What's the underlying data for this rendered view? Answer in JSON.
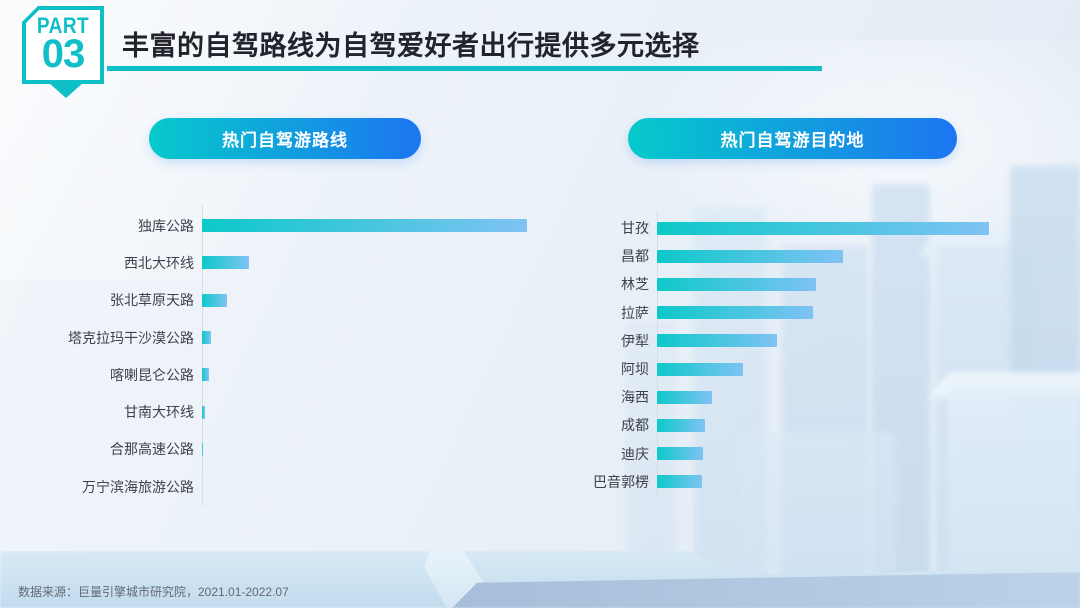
{
  "slide": {
    "badge": {
      "part": "PART",
      "number": "03"
    },
    "title": "丰富的自驾路线为自驾爱好者出行提供多元选择",
    "source": "数据来源：巨量引擎城市研究院，2021.01-2022.07"
  },
  "chart_data": [
    {
      "type": "bar",
      "orientation": "horizontal",
      "title": "热门自驾游路线",
      "categories": [
        "独库公路",
        "西北大环线",
        "张北草原天路",
        "塔克拉玛干沙漠公路",
        "喀喇昆仑公路",
        "甘南大环线",
        "合那高速公路",
        "万宁滨海旅游公路"
      ],
      "values": [
        100,
        14.5,
        7.7,
        2.8,
        2.2,
        0.8,
        0.25,
        0.12
      ],
      "xlabel": "",
      "ylabel": "",
      "grid": false,
      "legend": false,
      "value_note": "no numeric axis or data labels shown; values are relative bar lengths with longest bar = 100"
    },
    {
      "type": "bar",
      "orientation": "horizontal",
      "title": "热门自驾游目的地",
      "categories": [
        "甘孜",
        "昌都",
        "林芝",
        "拉萨",
        "伊犁",
        "阿坝",
        "海西",
        "成都",
        "迪庆",
        "巴音郭楞"
      ],
      "values": [
        100,
        56,
        48,
        47,
        36,
        26,
        16.5,
        14.5,
        14,
        13.5
      ],
      "xlabel": "",
      "ylabel": "",
      "grid": false,
      "legend": false,
      "value_note": "no numeric axis or data labels shown; values are relative bar lengths with longest bar = 100"
    }
  ],
  "colors": {
    "accent_teal": "#0FBFC8",
    "title_text": "#23232B",
    "pill_gradient_start": "#06CACB",
    "pill_gradient_end": "#1C75F1",
    "bar_gradient_start": "#0CC9C9",
    "bar_gradient_end": "#7FC2F4",
    "label_text": "#40414A",
    "source_text": "#636974",
    "axis_line": "#D7DDE4"
  }
}
